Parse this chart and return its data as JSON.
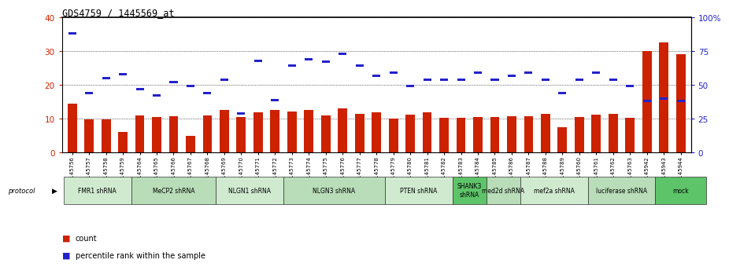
{
  "title": "GDS4759 / 1445569_at",
  "sample_labels": [
    "GSM1145756",
    "GSM1145757",
    "GSM1145758",
    "GSM1145759",
    "GSM1145764",
    "GSM1145765",
    "GSM1145766",
    "GSM1145767",
    "GSM1145768",
    "GSM1145769",
    "GSM1145770",
    "GSM1145771",
    "GSM1145772",
    "GSM1145773",
    "GSM1145774",
    "GSM1145775",
    "GSM1145776",
    "GSM1145777",
    "GSM1145778",
    "GSM1145779",
    "GSM1145780",
    "GSM1145781",
    "GSM1145782",
    "GSM1145783",
    "GSM1145784",
    "GSM1145785",
    "GSM1145786",
    "GSM1145787",
    "GSM1145788",
    "GSM1145789",
    "GSM1145760",
    "GSM1145761",
    "GSM1145762",
    "GSM1145763",
    "GSM1145942",
    "GSM1145943",
    "GSM1145944"
  ],
  "counts": [
    14.5,
    9.8,
    9.8,
    6.0,
    11.0,
    10.5,
    10.8,
    5.0,
    11.0,
    12.5,
    10.5,
    12.0,
    12.5,
    12.2,
    12.5,
    11.0,
    13.0,
    11.5,
    12.0,
    10.0,
    11.2,
    11.8,
    10.2,
    10.2,
    10.5,
    10.5,
    10.8,
    10.8,
    11.5,
    7.5,
    10.5,
    11.2,
    11.5,
    10.2,
    30.0,
    32.5,
    29.0
  ],
  "percentile_pct": [
    88,
    44,
    55,
    58,
    47,
    42,
    52,
    49,
    44,
    54,
    29,
    68,
    39,
    64,
    69,
    67,
    73,
    64,
    57,
    59,
    49,
    54,
    54,
    54,
    59,
    54,
    57,
    59,
    54,
    44,
    54,
    59,
    54,
    49,
    38,
    40,
    38
  ],
  "protocols": [
    {
      "label": "FMR1 shRNA",
      "start": 0,
      "end": 4,
      "color": "#d0ead0"
    },
    {
      "label": "MeCP2 shRNA",
      "start": 4,
      "end": 9,
      "color": "#b8ddb8"
    },
    {
      "label": "NLGN1 shRNA",
      "start": 9,
      "end": 13,
      "color": "#d0ead0"
    },
    {
      "label": "NLGN3 shRNA",
      "start": 13,
      "end": 19,
      "color": "#b8ddb8"
    },
    {
      "label": "PTEN shRNA",
      "start": 19,
      "end": 23,
      "color": "#d0ead0"
    },
    {
      "label": "SHANK3\nshRNA",
      "start": 23,
      "end": 25,
      "color": "#5ec469"
    },
    {
      "label": "med2d shRNA",
      "start": 25,
      "end": 27,
      "color": "#b8ddb8"
    },
    {
      "label": "mef2a shRNA",
      "start": 27,
      "end": 31,
      "color": "#d0ead0"
    },
    {
      "label": "luciferase shRNA",
      "start": 31,
      "end": 35,
      "color": "#b8ddb8"
    },
    {
      "label": "mock",
      "start": 35,
      "end": 38,
      "color": "#5ec469"
    }
  ],
  "bar_color": "#cc2200",
  "percentile_color": "#2222cc",
  "left_ylim": [
    0,
    40
  ],
  "right_ylim": [
    0,
    100
  ],
  "left_yticks": [
    0,
    10,
    20,
    30,
    40
  ],
  "right_yticks": [
    0,
    25,
    50,
    75,
    100
  ],
  "right_yticklabels": [
    "0",
    "25",
    "50",
    "75",
    "100%"
  ]
}
